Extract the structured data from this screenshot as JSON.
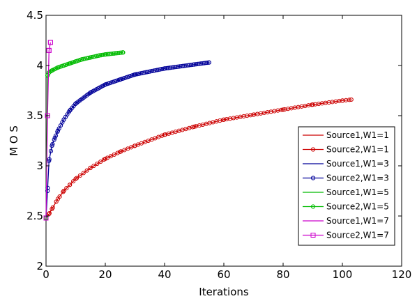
{
  "chart_data": {
    "type": "line",
    "title": "",
    "xlabel": "Iterations",
    "ylabel": "M O S",
    "xlim": [
      0,
      120
    ],
    "ylim": [
      2,
      4.5
    ],
    "xticks": [
      "0",
      "20",
      "40",
      "60",
      "80",
      "100",
      "120"
    ],
    "yticks": [
      "2",
      "2.5",
      "3",
      "3.5",
      "4",
      "4.5"
    ],
    "grid": false,
    "legend_position": "right",
    "legend": [
      "Source1,W1=1",
      "Source2,W1=1",
      "Source1,W1=3",
      "Source2,W1=3",
      "Source1,W1=5",
      "Source2,W1=5",
      "Source1,W1=7",
      "Source2,W1=7"
    ],
    "series": [
      {
        "name": "Source1,W1=1",
        "color": "#cc0000",
        "marker": "none",
        "x": [
          0,
          1,
          2,
          4,
          6,
          8,
          10,
          15,
          20,
          25,
          30,
          40,
          50,
          60,
          70,
          80,
          90,
          100,
          103
        ],
        "y": [
          2.48,
          2.52,
          2.57,
          2.67,
          2.75,
          2.81,
          2.87,
          2.98,
          3.07,
          3.14,
          3.2,
          3.31,
          3.39,
          3.46,
          3.51,
          3.56,
          3.61,
          3.65,
          3.66
        ]
      },
      {
        "name": "Source2,W1=1",
        "color": "#cc0000",
        "marker": "circle",
        "x": [
          0,
          1,
          2,
          4,
          6,
          8,
          10,
          15,
          20,
          25,
          30,
          40,
          50,
          60,
          70,
          80,
          90,
          100,
          103
        ],
        "y": [
          2.48,
          2.52,
          2.57,
          2.67,
          2.75,
          2.81,
          2.87,
          2.98,
          3.07,
          3.14,
          3.2,
          3.31,
          3.39,
          3.46,
          3.51,
          3.56,
          3.61,
          3.65,
          3.66
        ]
      },
      {
        "name": "Source1,W1=3",
        "color": "#000099",
        "marker": "none",
        "x": [
          0,
          0.5,
          1,
          2,
          3,
          4,
          6,
          8,
          10,
          15,
          20,
          25,
          30,
          40,
          50,
          55
        ],
        "y": [
          2.48,
          2.75,
          3.05,
          3.2,
          3.28,
          3.35,
          3.46,
          3.55,
          3.62,
          3.73,
          3.81,
          3.86,
          3.91,
          3.97,
          4.01,
          4.03
        ]
      },
      {
        "name": "Source2,W1=3",
        "color": "#000099",
        "marker": "circle",
        "x": [
          0,
          0.5,
          1,
          2,
          3,
          4,
          6,
          8,
          10,
          15,
          20,
          25,
          30,
          40,
          50,
          55
        ],
        "y": [
          2.48,
          2.75,
          3.05,
          3.2,
          3.28,
          3.35,
          3.46,
          3.55,
          3.62,
          3.73,
          3.81,
          3.86,
          3.91,
          3.97,
          4.01,
          4.03
        ]
      },
      {
        "name": "Source1,W1=5",
        "color": "#00bb00",
        "marker": "none",
        "x": [
          0,
          0.5,
          1,
          2,
          4,
          6,
          8,
          10,
          12,
          15,
          18,
          20,
          23,
          26
        ],
        "y": [
          2.48,
          3.9,
          3.93,
          3.95,
          3.98,
          4.0,
          4.02,
          4.04,
          4.06,
          4.08,
          4.1,
          4.11,
          4.12,
          4.13
        ]
      },
      {
        "name": "Source2,W1=5",
        "color": "#00bb00",
        "marker": "circle",
        "x": [
          0,
          0.5,
          1,
          2,
          4,
          6,
          8,
          10,
          12,
          15,
          18,
          20,
          23,
          26
        ],
        "y": [
          2.48,
          3.9,
          3.93,
          3.95,
          3.98,
          4.0,
          4.02,
          4.04,
          4.06,
          4.08,
          4.1,
          4.11,
          4.12,
          4.13
        ]
      },
      {
        "name": "Source1,W1=7",
        "color": "#cc00cc",
        "marker": "none",
        "x": [
          0,
          0.5,
          1,
          1.5
        ],
        "y": [
          2.48,
          3.5,
          4.15,
          4.23
        ]
      },
      {
        "name": "Source2,W1=7",
        "color": "#cc00cc",
        "marker": "square",
        "x": [
          0,
          0.5,
          1,
          1.5
        ],
        "y": [
          2.48,
          3.5,
          4.15,
          4.23
        ]
      }
    ]
  }
}
